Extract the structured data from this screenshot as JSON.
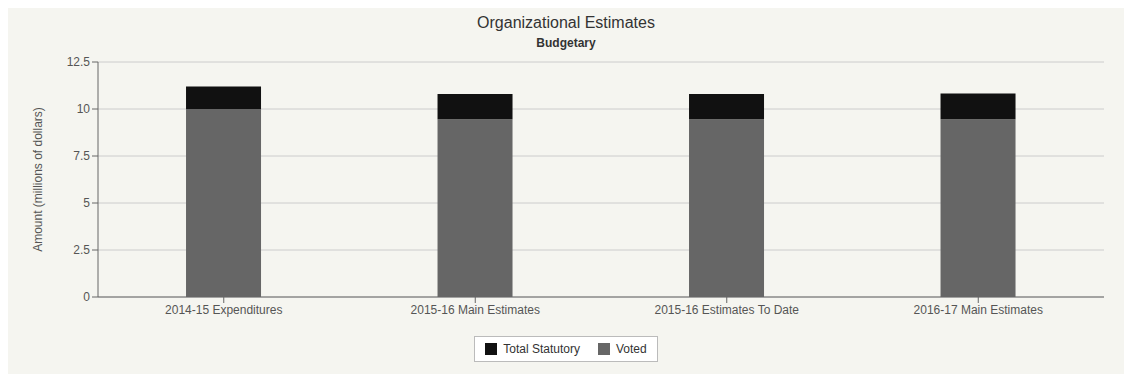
{
  "chart_data": {
    "type": "bar",
    "title": "Organizational Estimates",
    "subtitle": "Budgetary",
    "categories": [
      "2014-15 Expenditures",
      "2015-16 Main Estimates",
      "2015-16 Estimates To Date",
      "2016-17 Main Estimates"
    ],
    "series": [
      {
        "name": "Voted",
        "color": "#666666",
        "values": [
          10.0,
          9.45,
          9.45,
          9.45
        ]
      },
      {
        "name": "Total Statutory",
        "color": "#111111",
        "values": [
          1.2,
          1.35,
          1.35,
          1.38
        ]
      }
    ],
    "stacked": true,
    "ylabel": "Amount (millions of dollars)",
    "ylim": [
      0,
      12.5
    ],
    "yticks": [
      0,
      2.5,
      5,
      7.5,
      10,
      12.5
    ],
    "grid": true,
    "legend": "bottom",
    "color": "#f5f5f0"
  }
}
